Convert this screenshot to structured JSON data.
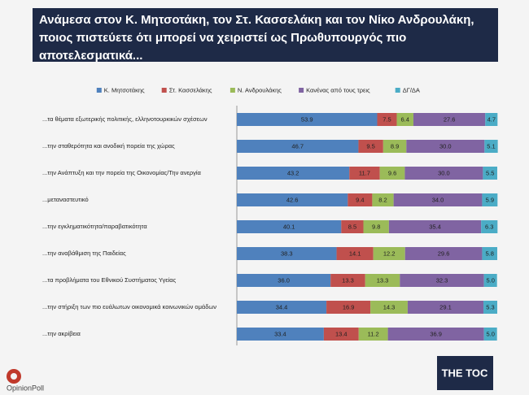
{
  "chart_data": {
    "type": "stacked-bar",
    "orientation": "horizontal",
    "title": "Ανάμεσα στον Κ. Μητσοτάκη, τον Στ. Κασσελάκη και τον Νίκο Ανδρουλάκη, ποιος πιστεύετε ότι μπορεί να χειριστεί ως Πρωθυπουργός πιο αποτελεσματικά...",
    "categories": [
      "...τα θέματα εξωτερικής πολιτικής, ελληνοτουρκικών σχέσεων",
      "...την σταθερότητα και ανοδική πορεία της χώρας",
      "...την Ανάπτυξη και την πορεία της Οικονομίας/Την ανεργία",
      "...μεταναστευτικό",
      "...την εγκληματικότητα/παραβατικότητα",
      "...την αναβάθμιση της Παιδείας",
      "...τα προβλήματα του Εθνικού Συστήματος Υγείας",
      "...την στήριξη των πιο ευάλωτων οικονομικά κοινωνικών ομάδων",
      "...την ακρίβεια"
    ],
    "xlim": [
      0,
      100
    ],
    "series": [
      {
        "name": "Κ. Μητσοτάκης",
        "color": "#4f81bd",
        "values": [
          53.9,
          46.7,
          43.2,
          42.6,
          40.1,
          38.3,
          36.0,
          34.4,
          33.4
        ],
        "value_labels": [
          "53.9",
          "46.7",
          "43.2",
          "42.6",
          "40.1",
          "38.3",
          "36.0",
          "34.4",
          "33.4"
        ]
      },
      {
        "name": "Στ. Κασσελάκης",
        "color": "#c0504d",
        "values": [
          7.5,
          9.5,
          11.7,
          9.4,
          8.5,
          14.1,
          13.3,
          16.9,
          13.4
        ],
        "value_labels": [
          "7.5",
          "9.5",
          "11.7",
          "9.4",
          "8.5",
          "14.1",
          "13.3",
          "16.9",
          "13.4"
        ]
      },
      {
        "name": "Ν. Ανδρουλάκης",
        "color": "#9bbb59",
        "values": [
          6.4,
          8.9,
          9.6,
          8.2,
          9.8,
          12.2,
          13.3,
          14.3,
          11.2
        ],
        "value_labels": [
          "6.4",
          "8.9",
          "9.6",
          "8.2",
          "9.8",
          "12.2",
          "13.3",
          "14.3",
          "11.2"
        ]
      },
      {
        "name": "Κανένας από τους τρεις",
        "color": "#8064a2",
        "values": [
          27.6,
          30.0,
          30.0,
          34.0,
          35.4,
          29.6,
          32.3,
          29.1,
          36.9
        ],
        "value_labels": [
          "27.6",
          "30.0",
          "30.0",
          "34.0",
          "35.4",
          "29.6",
          "32.3",
          "29.1",
          "36.9"
        ]
      },
      {
        "name": "ΔΓ/ΔΑ",
        "color": "#4bacc6",
        "values": [
          4.7,
          5.1,
          5.5,
          5.9,
          6.3,
          5.8,
          5.0,
          5.3,
          5.0
        ],
        "value_labels": [
          "4.7",
          "5.1",
          "5.5",
          "5.9",
          "6.3",
          "5.8",
          "5.0",
          "5.3",
          "5.0"
        ]
      }
    ],
    "legend": "top"
  },
  "logos": {
    "left": "OpinionPoll",
    "right": "THE TOC"
  }
}
